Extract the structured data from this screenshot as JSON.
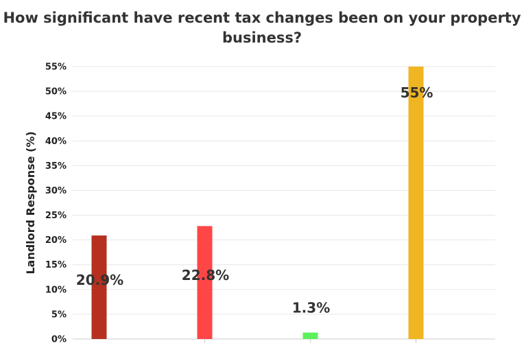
{
  "chart_data": {
    "type": "bar",
    "title_line1": "How significant have recent tax changes been on your property",
    "title_line2": "business?",
    "ylabel": "Landlord Response (%)",
    "ylim": [
      0,
      55
    ],
    "yticks": [
      "0%",
      "5%",
      "10%",
      "15%",
      "20%",
      "25%",
      "30%",
      "35%",
      "40%",
      "45%",
      "50%",
      "55%"
    ],
    "categories": [
      "",
      "",
      "",
      ""
    ],
    "values": [
      20.9,
      22.8,
      1.3,
      55
    ],
    "labels": [
      "20.9%",
      "22.8%",
      "1.3%",
      "55%"
    ],
    "colors": [
      "#B5301F",
      "#FF4646",
      "#5CF05C",
      "#F0B522"
    ],
    "grid": true
  }
}
